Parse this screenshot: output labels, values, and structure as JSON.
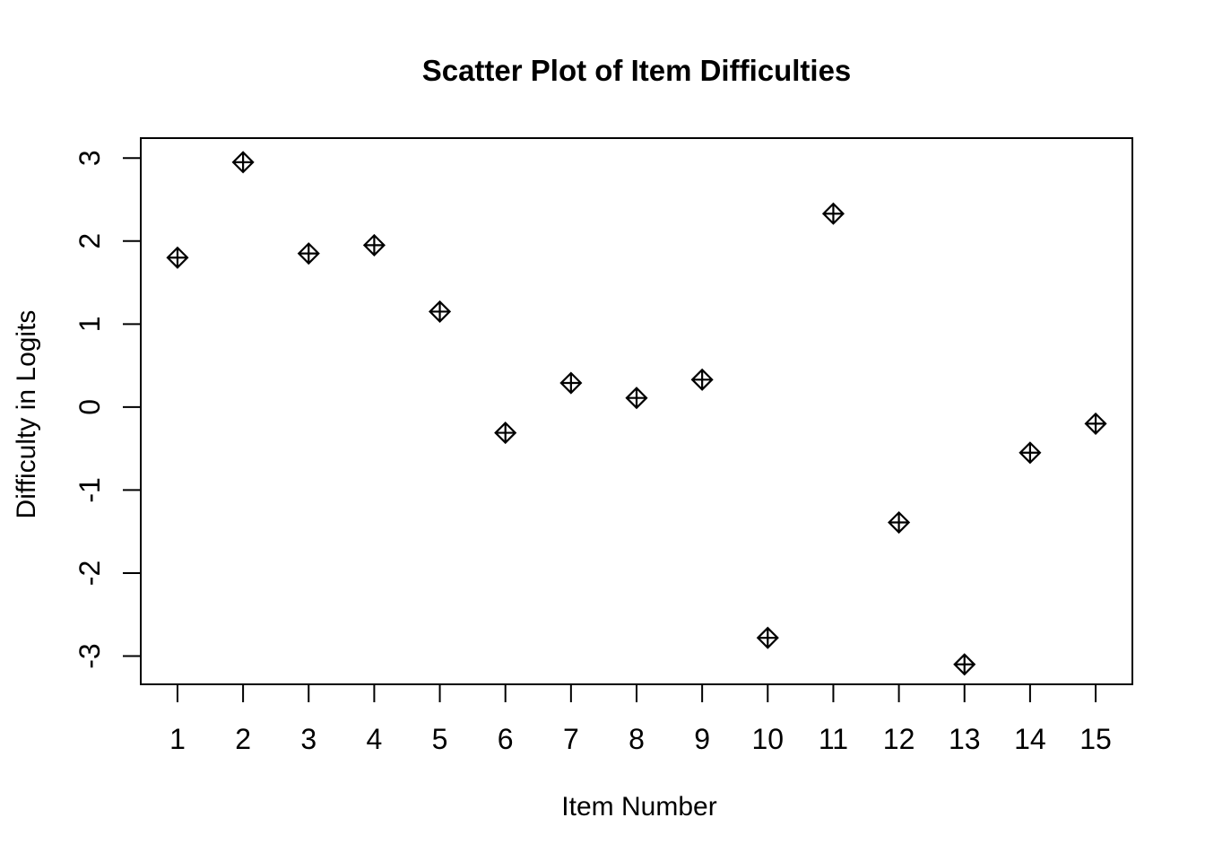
{
  "figure": {
    "background": "#FFFFFF",
    "foreground": "#000000"
  },
  "chart_data": {
    "type": "scatter",
    "title": "Scatter Plot of Item Difficulties",
    "xlabel": "Item Number",
    "ylabel": "Difficulty in Logits",
    "x": [
      1,
      2,
      3,
      4,
      5,
      6,
      7,
      8,
      9,
      10,
      11,
      12,
      13,
      14,
      15
    ],
    "y": [
      1.8,
      2.95,
      1.85,
      1.95,
      1.15,
      -0.31,
      0.29,
      0.11,
      0.33,
      -2.78,
      2.33,
      -1.39,
      -3.1,
      -0.55,
      -0.2
    ],
    "xtick_values": [
      1,
      2,
      3,
      4,
      5,
      6,
      7,
      8,
      9,
      10,
      11,
      12,
      13,
      14,
      15
    ],
    "xticks": [
      "1",
      "2",
      "3",
      "4",
      "5",
      "6",
      "7",
      "8",
      "9",
      "10",
      "11",
      "12",
      "13",
      "14",
      "15"
    ],
    "ytick_values": [
      -3,
      -2,
      -1,
      0,
      1,
      2,
      3
    ],
    "yticks": [
      "-3",
      "-2",
      "-1",
      "0",
      "1",
      "2",
      "3"
    ],
    "xlim": [
      0.44,
      15.56
    ],
    "ylim": [
      -3.34,
      3.24
    ],
    "grid": false,
    "legend": "none",
    "marker": "diamond-plus-pch9",
    "marker_color": "#000000",
    "background": "#FFFFFF"
  }
}
